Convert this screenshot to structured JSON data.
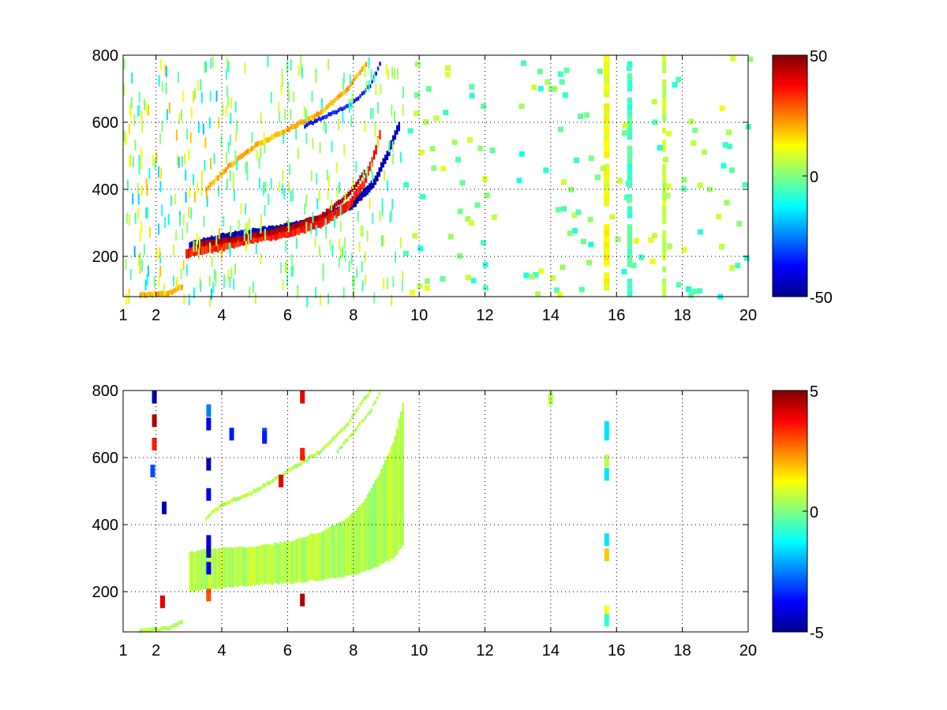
{
  "chart_data": [
    {
      "type": "heatmap",
      "title": "",
      "xlabel": "",
      "ylabel": "",
      "xlim": [
        1,
        20
      ],
      "ylim": [
        80,
        800
      ],
      "x_ticks": [
        1,
        2,
        4,
        6,
        8,
        10,
        12,
        14,
        16,
        18,
        20
      ],
      "y_ticks": [
        200,
        400,
        600,
        800
      ],
      "grid": true,
      "colormap": "jet",
      "colorbar": {
        "min": -50,
        "max": 50,
        "ticks": [
          50,
          0,
          -50
        ],
        "position": "right"
      },
      "features": [
        {
          "kind": "curve",
          "points": [
            [
              3.0,
              230
            ],
            [
              4,
              255
            ],
            [
              5,
              270
            ],
            [
              6,
              285
            ],
            [
              7,
              310
            ],
            [
              8,
              360
            ],
            [
              8.6,
              420
            ],
            [
              9.0,
              500
            ],
            [
              9.4,
              600
            ]
          ],
          "value": -45,
          "width": 14
        },
        {
          "kind": "curve",
          "points": [
            [
              2.9,
              210
            ],
            [
              4,
              230
            ],
            [
              5,
              255
            ],
            [
              6,
              270
            ],
            [
              7,
              300
            ],
            [
              7.8,
              350
            ],
            [
              8.3,
              420
            ],
            [
              8.6,
              500
            ],
            [
              8.8,
              570
            ]
          ],
          "value": 35,
          "width": 14
        },
        {
          "kind": "curve",
          "points": [
            [
              3.2,
              235
            ],
            [
              4,
              245
            ],
            [
              5,
              262
            ],
            [
              6,
              285
            ],
            [
              7,
              320
            ],
            [
              7.8,
              380
            ],
            [
              8.3,
              450
            ]
          ],
          "value": 45,
          "width": 8
        },
        {
          "kind": "curve",
          "points": [
            [
              3.5,
              400
            ],
            [
              4.2,
              470
            ],
            [
              5,
              530
            ],
            [
              6,
              580
            ],
            [
              7,
              630
            ],
            [
              7.8,
              700
            ],
            [
              8.4,
              780
            ]
          ],
          "value": 20,
          "width": 8
        },
        {
          "kind": "curve",
          "points": [
            [
              6.5,
              590
            ],
            [
              7.2,
              620
            ],
            [
              8,
              660
            ],
            [
              8.5,
              710
            ],
            [
              8.8,
              780
            ]
          ],
          "value": -35,
          "width": 6
        },
        {
          "kind": "curve",
          "points": [
            [
              1.5,
              85
            ],
            [
              2.3,
              90
            ],
            [
              2.8,
              110
            ]
          ],
          "value": 20,
          "width": 8
        }
      ],
      "stripes": [
        {
          "x": 15.7,
          "value": 12,
          "width": 0.18
        },
        {
          "x": 16.4,
          "value": -6,
          "width": 0.15
        },
        {
          "x": 17.45,
          "value": 6,
          "width": 0.12
        }
      ]
    },
    {
      "type": "heatmap",
      "title": "",
      "xlabel": "",
      "ylabel": "",
      "xlim": [
        1,
        20
      ],
      "ylim": [
        80,
        800
      ],
      "x_ticks": [
        1,
        2,
        4,
        6,
        8,
        10,
        12,
        14,
        16,
        18,
        20
      ],
      "y_ticks": [
        200,
        400,
        600,
        800
      ],
      "grid": true,
      "colormap": "jet",
      "colorbar": {
        "min": -5,
        "max": 5,
        "ticks": [
          5,
          0,
          -5
        ],
        "position": "right"
      },
      "features": [
        {
          "kind": "band",
          "upper": [
            [
              3.0,
              320
            ],
            [
              4,
              330
            ],
            [
              5,
              335
            ],
            [
              6,
              350
            ],
            [
              7,
              380
            ],
            [
              7.8,
              420
            ],
            [
              8.3,
              470
            ],
            [
              8.8,
              560
            ],
            [
              9.2,
              650
            ],
            [
              9.5,
              770
            ]
          ],
          "lower": [
            [
              3.0,
              200
            ],
            [
              4,
              210
            ],
            [
              5,
              220
            ],
            [
              6,
              225
            ],
            [
              7,
              235
            ],
            [
              8,
              250
            ],
            [
              8.6,
              270
            ],
            [
              9.2,
              300
            ],
            [
              9.5,
              340
            ]
          ],
          "value": 0.5
        },
        {
          "kind": "curve",
          "points": [
            [
              3.5,
              420
            ],
            [
              4,
              460
            ],
            [
              5,
              500
            ],
            [
              6,
              560
            ],
            [
              7,
              620
            ],
            [
              7.8,
              700
            ],
            [
              8.2,
              760
            ],
            [
              8.5,
              800
            ]
          ],
          "value": 0.5,
          "width": 6
        },
        {
          "kind": "curve",
          "points": [
            [
              7.5,
              620
            ],
            [
              8,
              680
            ],
            [
              8.5,
              740
            ],
            [
              8.8,
              800
            ]
          ],
          "value": 0.5,
          "width": 5
        },
        {
          "kind": "curve",
          "points": [
            [
              1.5,
              85
            ],
            [
              2.3,
              90
            ],
            [
              2.8,
              110
            ]
          ],
          "value": 0.5,
          "width": 6
        }
      ],
      "points": [
        [
          15.7,
          690,
          -1.5
        ],
        [
          15.7,
          670,
          -1.5
        ],
        [
          15.7,
          590,
          0.5
        ],
        [
          15.7,
          550,
          -1.5
        ],
        [
          15.7,
          355,
          -1.5
        ],
        [
          15.7,
          310,
          1.8
        ],
        [
          15.7,
          140,
          1.2
        ],
        [
          15.7,
          115,
          -0.8
        ],
        [
          1.95,
          780,
          -4.5
        ],
        [
          1.95,
          710,
          4.5
        ],
        [
          1.95,
          640,
          3.5
        ],
        [
          1.9,
          560,
          -3
        ],
        [
          2.25,
          450,
          -4.5
        ],
        [
          3.6,
          740,
          -2.5
        ],
        [
          3.6,
          700,
          -4
        ],
        [
          3.6,
          580,
          -4.5
        ],
        [
          3.6,
          490,
          -4
        ],
        [
          3.6,
          350,
          -4
        ],
        [
          3.6,
          320,
          -4.5
        ],
        [
          3.6,
          270,
          -4
        ],
        [
          3.6,
          190,
          3
        ],
        [
          4.3,
          670,
          -3.5
        ],
        [
          5.3,
          670,
          -3
        ],
        [
          5.3,
          660,
          -3.5
        ],
        [
          5.8,
          530,
          4
        ],
        [
          6.45,
          610,
          3.5
        ],
        [
          6.45,
          175,
          4.5
        ],
        [
          6.45,
          780,
          4
        ],
        [
          2.2,
          170,
          4
        ],
        [
          14.0,
          775,
          0.5
        ]
      ]
    }
  ]
}
